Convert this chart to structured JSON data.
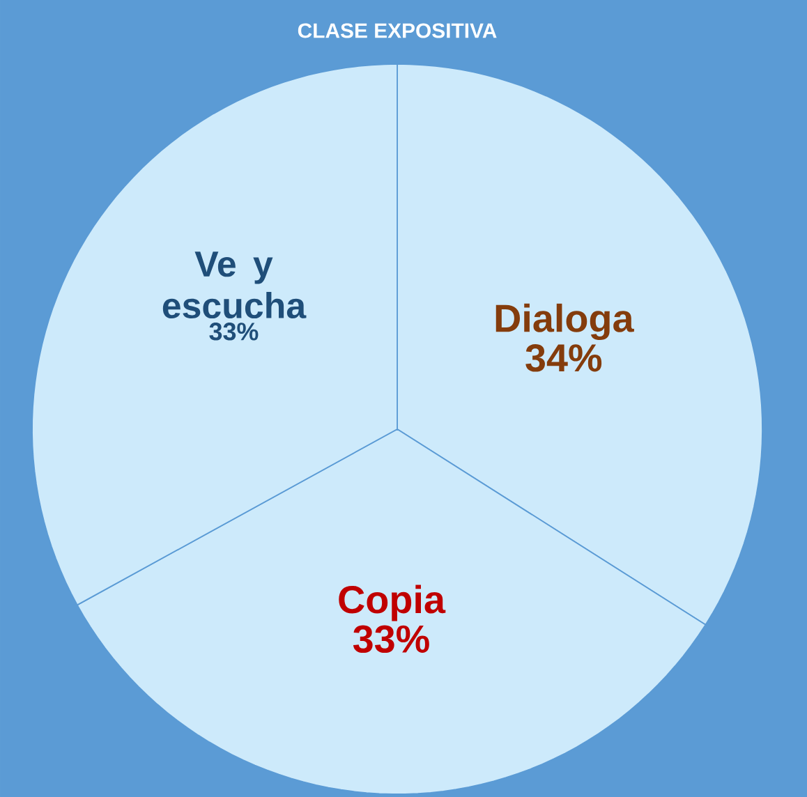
{
  "chart_data": {
    "type": "pie",
    "title": "CLASE EXPOSITIVA",
    "categories": [
      "Dialoga",
      "Copia",
      "Ve y escucha"
    ],
    "values": [
      34,
      33,
      33
    ],
    "value_labels": [
      "34%",
      "33%",
      "33%"
    ],
    "colors": [
      "#cdeafb",
      "#cdeafb",
      "#cdeafb"
    ]
  }
}
